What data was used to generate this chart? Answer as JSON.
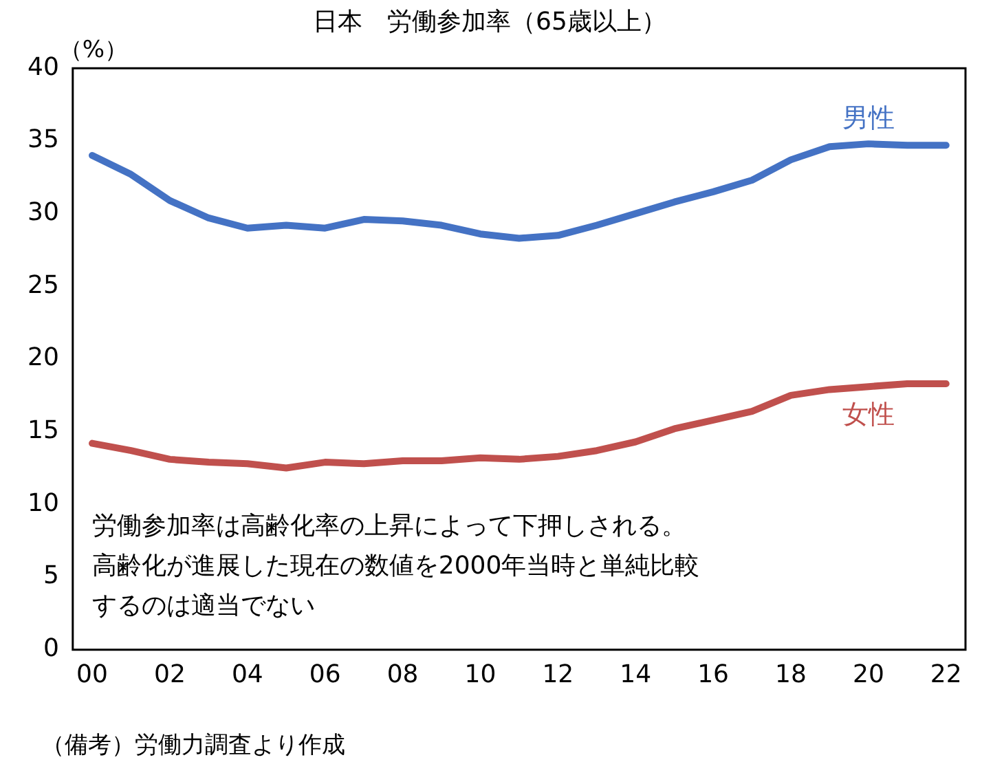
{
  "chart_data": {
    "type": "line",
    "title": "日本　労働参加率（65歳以上）",
    "ylabel": "（%）",
    "x": [
      0,
      1,
      2,
      3,
      4,
      5,
      6,
      7,
      8,
      9,
      10,
      11,
      12,
      13,
      14,
      15,
      16,
      17,
      18,
      19,
      20,
      21,
      22
    ],
    "series": [
      {
        "name": "男性",
        "color": "#4472c4",
        "values": [
          34.0,
          32.7,
          30.9,
          29.7,
          29.0,
          29.2,
          29.0,
          29.6,
          29.5,
          29.2,
          28.6,
          28.3,
          28.5,
          29.2,
          30.0,
          30.8,
          31.5,
          32.3,
          33.7,
          34.6,
          34.8,
          34.7,
          34.7
        ]
      },
      {
        "name": "女性",
        "color": "#c0504d",
        "values": [
          14.2,
          13.7,
          13.1,
          12.9,
          12.8,
          12.5,
          12.9,
          12.8,
          13.0,
          13.0,
          13.2,
          13.1,
          13.3,
          13.7,
          14.3,
          15.2,
          15.8,
          16.4,
          17.5,
          17.9,
          18.1,
          18.3,
          18.3
        ]
      }
    ],
    "xlim": [
      -0.5,
      22.5
    ],
    "xticks": [
      {
        "value": 0,
        "label": "00"
      },
      {
        "value": 2,
        "label": "02"
      },
      {
        "value": 4,
        "label": "04"
      },
      {
        "value": 6,
        "label": "06"
      },
      {
        "value": 8,
        "label": "08"
      },
      {
        "value": 10,
        "label": "10"
      },
      {
        "value": 12,
        "label": "12"
      },
      {
        "value": 14,
        "label": "14"
      },
      {
        "value": 16,
        "label": "16"
      },
      {
        "value": 18,
        "label": "18"
      },
      {
        "value": 20,
        "label": "20"
      },
      {
        "value": 22,
        "label": "22"
      }
    ],
    "ylim": [
      0,
      40
    ],
    "yticks": [
      0,
      5,
      10,
      15,
      20,
      25,
      30,
      35,
      40
    ],
    "grid": false,
    "legend": false,
    "marker": "none",
    "line_style": "solid",
    "annotations": [
      "労働参加率は高齢化率の上昇によって下押しされる。",
      "高齢化が進展した現在の数値を2000年当時と単純比較",
      "するのは適当でない",
      "（備考）労働力調査より作成"
    ]
  }
}
